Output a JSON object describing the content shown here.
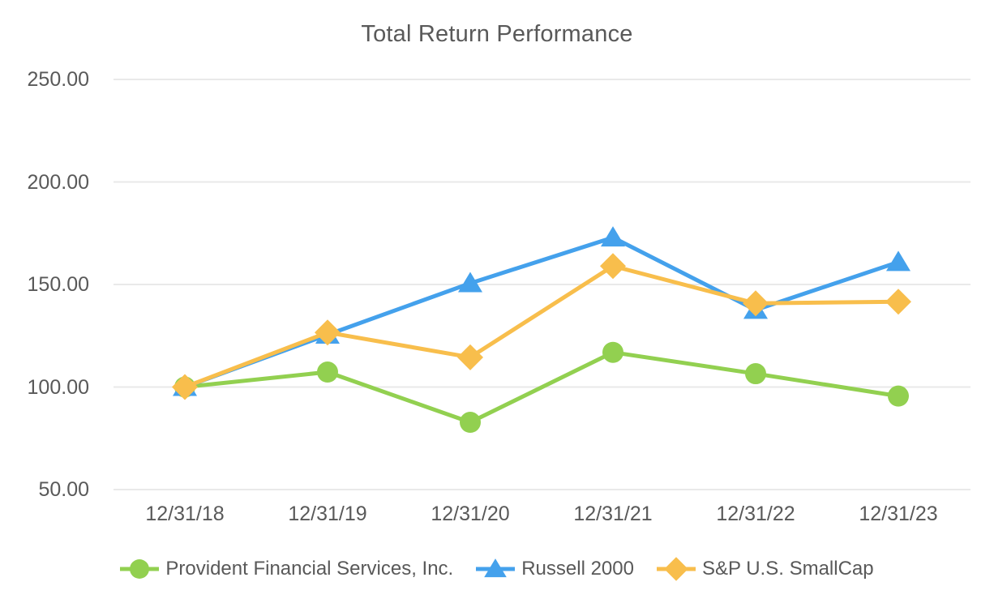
{
  "chart_data": {
    "type": "line",
    "title": "Total Return Performance",
    "categories": [
      "12/31/18",
      "12/31/19",
      "12/31/20",
      "12/31/21",
      "12/31/22",
      "12/31/23"
    ],
    "series": [
      {
        "name": "Provident Financial Services, Inc.",
        "marker": "circle",
        "color": "#92D050",
        "values": [
          100.0,
          107.3,
          82.8,
          116.9,
          106.5,
          95.6
        ]
      },
      {
        "name": "Russell 2000",
        "marker": "triangle",
        "color": "#44A1EC",
        "values": [
          100.0,
          125.5,
          150.6,
          172.9,
          137.6,
          160.9
        ]
      },
      {
        "name": "S&P U.S. SmallCap",
        "marker": "diamond",
        "color": "#F8BE4C",
        "values": [
          100.0,
          126.6,
          114.5,
          159.0,
          140.8,
          141.6
        ]
      }
    ],
    "y_axis": {
      "min": 50,
      "max": 250,
      "ticks": [
        250,
        200,
        150,
        100,
        50
      ],
      "tick_labels": [
        "250.00",
        "200.00",
        "150.00",
        "100.00",
        "50.00"
      ]
    },
    "grid": true,
    "legend_position": "bottom",
    "colors": {
      "text": "#595959",
      "gridline": "#E9E9E9",
      "background": "#FFFFFF"
    }
  }
}
